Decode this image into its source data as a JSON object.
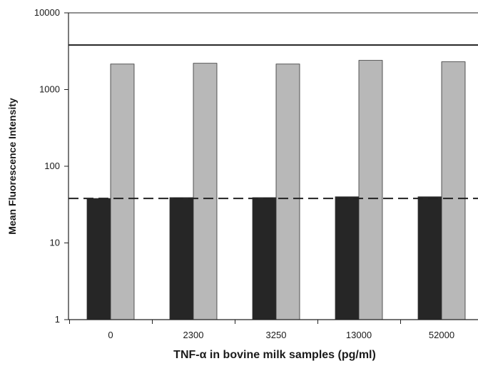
{
  "chart_data": {
    "type": "bar",
    "title": "",
    "xlabel": "TNF-α in bovine milk samples (pg/ml)",
    "ylabel": "Mean Fluorescence Intensity",
    "yscale": "log",
    "ylim": [
      1,
      10000
    ],
    "yticks": [
      "1",
      "10",
      "100",
      "1000",
      "10000"
    ],
    "categories": [
      "0",
      "2300",
      "3250",
      "13000",
      "52000"
    ],
    "series": [
      {
        "values": [
          38,
          39,
          39,
          40,
          40
        ],
        "color": "#262626"
      },
      {
        "values": [
          2150,
          2200,
          2150,
          2400,
          2300
        ],
        "color": "#b8b8b8"
      }
    ],
    "reference_lines": [
      {
        "style": "solid",
        "value": 3800
      },
      {
        "style": "dashed",
        "value": 38
      }
    ],
    "grid": false,
    "legend": "none"
  }
}
